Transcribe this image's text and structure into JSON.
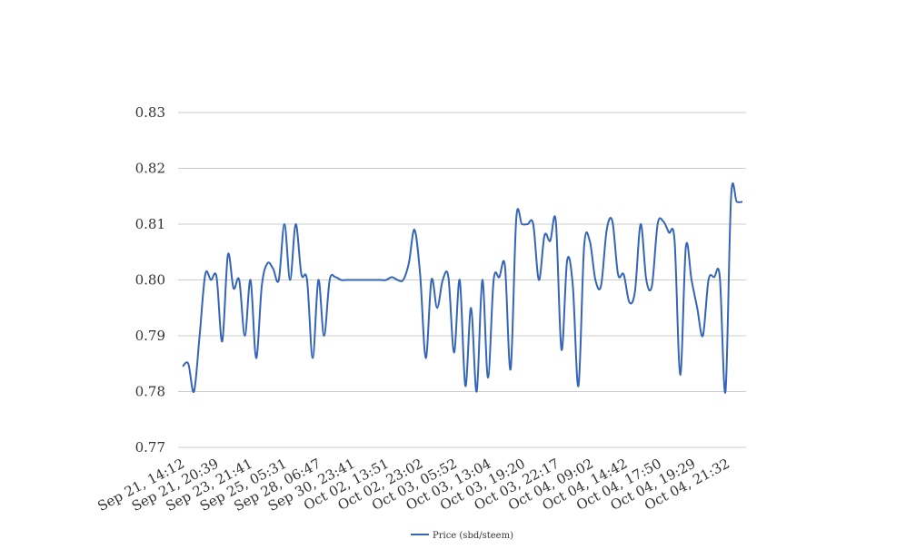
{
  "chart_data": {
    "type": "line",
    "title": "",
    "xlabel": "",
    "ylabel": "",
    "ylim": [
      0.77,
      0.83
    ],
    "yticks": [
      "0.77",
      "0.78",
      "0.79",
      "0.80",
      "0.81",
      "0.82",
      "0.83"
    ],
    "grid": true,
    "legend_position": "bottom-center",
    "x_tick_labels": [
      "Sep 21, 14:12",
      "Sep 21, 20:39",
      "Sep 23, 21:41",
      "Sep 25, 05:31",
      "Sep 28, 06:47",
      "Sep 30, 23:41",
      "Oct 02, 13:51",
      "Oct 02, 23:02",
      "Oct 03, 05:52",
      "Oct 03, 13:04",
      "Oct 03, 19:20",
      "Oct 03, 22:17",
      "Oct 04, 09:02",
      "Oct 04, 14:42",
      "Oct 04, 17:50",
      "Oct 04, 19:29",
      "Oct 04, 21:32"
    ],
    "series": [
      {
        "name": "Price (sbd/steem)",
        "color": "#3465b8",
        "values": [
          0.7845,
          0.785,
          0.78,
          0.79,
          0.801,
          0.8,
          0.8005,
          0.789,
          0.8045,
          0.7985,
          0.8,
          0.79,
          0.8,
          0.786,
          0.799,
          0.803,
          0.802,
          0.8,
          0.81,
          0.8,
          0.81,
          0.801,
          0.8,
          0.786,
          0.8,
          0.79,
          0.8,
          0.8005,
          0.8,
          0.8,
          0.8,
          0.8,
          0.8,
          0.8,
          0.8,
          0.8,
          0.8,
          0.8005,
          0.8,
          0.8,
          0.803,
          0.809,
          0.801,
          0.786,
          0.8,
          0.795,
          0.8,
          0.8005,
          0.787,
          0.8,
          0.781,
          0.795,
          0.78,
          0.8,
          0.7825,
          0.8,
          0.8005,
          0.8025,
          0.784,
          0.811,
          0.81,
          0.81,
          0.81,
          0.8,
          0.808,
          0.807,
          0.8105,
          0.7875,
          0.8035,
          0.799,
          0.781,
          0.806,
          0.807,
          0.8,
          0.799,
          0.809,
          0.8105,
          0.801,
          0.801,
          0.796,
          0.798,
          0.81,
          0.8,
          0.799,
          0.81,
          0.8105,
          0.8085,
          0.807,
          0.783,
          0.806,
          0.8,
          0.795,
          0.79,
          0.8,
          0.8005,
          0.8005,
          0.78,
          0.815,
          0.814,
          0.814
        ]
      }
    ]
  }
}
